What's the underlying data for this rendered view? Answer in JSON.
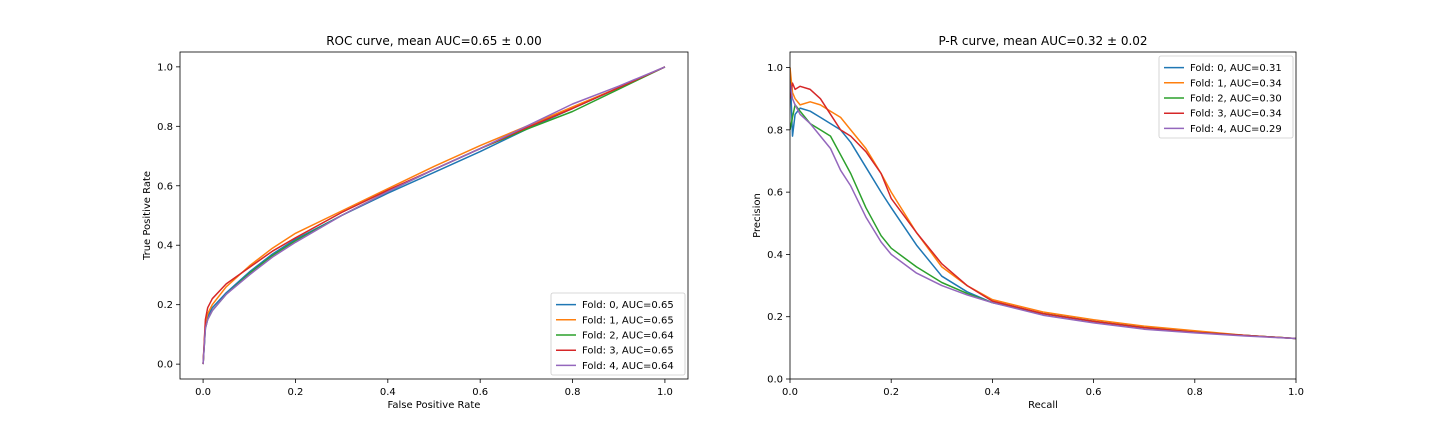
{
  "chart_data": [
    {
      "type": "line",
      "title": "ROC curve, mean AUC=0.65 ± 0.00",
      "xlabel": "False Positive Rate",
      "ylabel": "True Positive Rate",
      "xlim": [
        -0.05,
        1.05
      ],
      "ylim": [
        -0.05,
        1.05
      ],
      "xticks": [
        0.0,
        0.2,
        0.4,
        0.6,
        0.8,
        1.0
      ],
      "yticks": [
        0.0,
        0.2,
        0.4,
        0.6,
        0.8,
        1.0
      ],
      "tick_labels_x": [
        "0.0",
        "0.2",
        "0.4",
        "0.6",
        "0.8",
        "1.0"
      ],
      "tick_labels_y": [
        "0.0",
        "0.2",
        "0.4",
        "0.6",
        "0.8",
        "1.0"
      ],
      "legend_position": "lower-right",
      "grid": false,
      "series": [
        {
          "name": "Fold: 0, AUC=0.65",
          "color": "#1f77b4",
          "x": [
            0,
            0.005,
            0.01,
            0.02,
            0.05,
            0.1,
            0.15,
            0.2,
            0.3,
            0.4,
            0.5,
            0.6,
            0.7,
            0.8,
            0.9,
            1.0
          ],
          "y": [
            0,
            0.13,
            0.16,
            0.19,
            0.24,
            0.31,
            0.37,
            0.42,
            0.5,
            0.575,
            0.645,
            0.715,
            0.79,
            0.86,
            0.93,
            1.0
          ]
        },
        {
          "name": "Fold: 1, AUC=0.65",
          "color": "#ff7f0e",
          "x": [
            0,
            0.005,
            0.01,
            0.02,
            0.05,
            0.1,
            0.15,
            0.2,
            0.3,
            0.4,
            0.5,
            0.6,
            0.7,
            0.8,
            0.9,
            1.0
          ],
          "y": [
            0,
            0.14,
            0.17,
            0.2,
            0.26,
            0.33,
            0.39,
            0.44,
            0.515,
            0.59,
            0.665,
            0.735,
            0.8,
            0.865,
            0.93,
            1.0
          ]
        },
        {
          "name": "Fold: 2, AUC=0.64",
          "color": "#2ca02c",
          "x": [
            0,
            0.005,
            0.01,
            0.02,
            0.05,
            0.1,
            0.15,
            0.2,
            0.3,
            0.4,
            0.5,
            0.6,
            0.7,
            0.8,
            0.9,
            1.0
          ],
          "y": [
            0,
            0.12,
            0.15,
            0.18,
            0.235,
            0.305,
            0.365,
            0.415,
            0.5,
            0.58,
            0.655,
            0.725,
            0.79,
            0.85,
            0.925,
            1.0
          ]
        },
        {
          "name": "Fold: 3, AUC=0.65",
          "color": "#d62728",
          "x": [
            0,
            0.005,
            0.01,
            0.02,
            0.05,
            0.1,
            0.15,
            0.2,
            0.3,
            0.4,
            0.5,
            0.6,
            0.7,
            0.8,
            0.9,
            1.0
          ],
          "y": [
            0,
            0.15,
            0.19,
            0.22,
            0.27,
            0.325,
            0.38,
            0.425,
            0.51,
            0.585,
            0.655,
            0.725,
            0.795,
            0.86,
            0.93,
            1.0
          ]
        },
        {
          "name": "Fold: 4, AUC=0.64",
          "color": "#9467bd",
          "x": [
            0,
            0.005,
            0.01,
            0.02,
            0.05,
            0.1,
            0.15,
            0.2,
            0.3,
            0.4,
            0.5,
            0.6,
            0.7,
            0.8,
            0.9,
            1.0
          ],
          "y": [
            0,
            0.12,
            0.15,
            0.18,
            0.235,
            0.3,
            0.36,
            0.41,
            0.5,
            0.58,
            0.655,
            0.725,
            0.8,
            0.875,
            0.935,
            1.0
          ]
        }
      ]
    },
    {
      "type": "line",
      "title": "P-R curve, mean AUC=0.32 ± 0.02",
      "xlabel": "Recall",
      "ylabel": "Precision",
      "xlim": [
        0.0,
        1.0
      ],
      "ylim": [
        0.0,
        1.05
      ],
      "xticks": [
        0.0,
        0.2,
        0.4,
        0.6,
        0.8,
        1.0
      ],
      "yticks": [
        0.0,
        0.2,
        0.4,
        0.6,
        0.8,
        1.0
      ],
      "tick_labels_x": [
        "0.0",
        "0.2",
        "0.4",
        "0.6",
        "0.8",
        "1.0"
      ],
      "tick_labels_y": [
        "0.0",
        "0.2",
        "0.4",
        "0.6",
        "0.8",
        "1.0"
      ],
      "legend_position": "upper-right",
      "grid": false,
      "series": [
        {
          "name": "Fold: 0, AUC=0.31",
          "color": "#1f77b4",
          "x": [
            0,
            0.005,
            0.01,
            0.02,
            0.04,
            0.06,
            0.08,
            0.1,
            0.12,
            0.15,
            0.18,
            0.2,
            0.25,
            0.3,
            0.35,
            0.4,
            0.5,
            0.6,
            0.7,
            0.8,
            0.9,
            1.0
          ],
          "y": [
            1.0,
            0.78,
            0.85,
            0.87,
            0.86,
            0.84,
            0.82,
            0.8,
            0.76,
            0.68,
            0.6,
            0.55,
            0.43,
            0.33,
            0.28,
            0.245,
            0.21,
            0.185,
            0.165,
            0.15,
            0.14,
            0.13
          ]
        },
        {
          "name": "Fold: 1, AUC=0.34",
          "color": "#ff7f0e",
          "x": [
            0,
            0.005,
            0.01,
            0.02,
            0.04,
            0.06,
            0.08,
            0.1,
            0.12,
            0.15,
            0.18,
            0.2,
            0.25,
            0.3,
            0.35,
            0.4,
            0.5,
            0.6,
            0.7,
            0.8,
            0.9,
            1.0
          ],
          "y": [
            1.0,
            0.92,
            0.9,
            0.88,
            0.89,
            0.88,
            0.86,
            0.84,
            0.8,
            0.74,
            0.66,
            0.6,
            0.47,
            0.36,
            0.3,
            0.255,
            0.215,
            0.19,
            0.17,
            0.155,
            0.14,
            0.13
          ]
        },
        {
          "name": "Fold: 2, AUC=0.30",
          "color": "#2ca02c",
          "x": [
            0,
            0.005,
            0.01,
            0.02,
            0.04,
            0.06,
            0.08,
            0.1,
            0.12,
            0.15,
            0.18,
            0.2,
            0.25,
            0.3,
            0.35,
            0.4,
            0.5,
            0.6,
            0.7,
            0.8,
            0.9,
            1.0
          ],
          "y": [
            0.8,
            0.84,
            0.88,
            0.86,
            0.82,
            0.8,
            0.78,
            0.72,
            0.66,
            0.55,
            0.46,
            0.42,
            0.36,
            0.31,
            0.275,
            0.245,
            0.21,
            0.185,
            0.165,
            0.15,
            0.14,
            0.13
          ]
        },
        {
          "name": "Fold: 3, AUC=0.34",
          "color": "#d62728",
          "x": [
            0,
            0.005,
            0.01,
            0.02,
            0.04,
            0.06,
            0.08,
            0.1,
            0.12,
            0.15,
            0.18,
            0.2,
            0.25,
            0.3,
            0.35,
            0.4,
            0.5,
            0.6,
            0.7,
            0.8,
            0.9,
            1.0
          ],
          "y": [
            0.9,
            0.95,
            0.93,
            0.94,
            0.93,
            0.9,
            0.85,
            0.8,
            0.78,
            0.73,
            0.66,
            0.58,
            0.47,
            0.37,
            0.3,
            0.25,
            0.21,
            0.185,
            0.165,
            0.15,
            0.14,
            0.13
          ]
        },
        {
          "name": "Fold: 4, AUC=0.29",
          "color": "#9467bd",
          "x": [
            0,
            0.005,
            0.01,
            0.02,
            0.04,
            0.06,
            0.08,
            0.1,
            0.12,
            0.15,
            0.18,
            0.2,
            0.25,
            0.3,
            0.35,
            0.4,
            0.5,
            0.6,
            0.7,
            0.8,
            0.9,
            1.0
          ],
          "y": [
            0.95,
            0.9,
            0.88,
            0.85,
            0.82,
            0.78,
            0.74,
            0.67,
            0.62,
            0.52,
            0.44,
            0.4,
            0.34,
            0.3,
            0.27,
            0.245,
            0.205,
            0.18,
            0.16,
            0.148,
            0.138,
            0.13
          ]
        }
      ]
    }
  ]
}
